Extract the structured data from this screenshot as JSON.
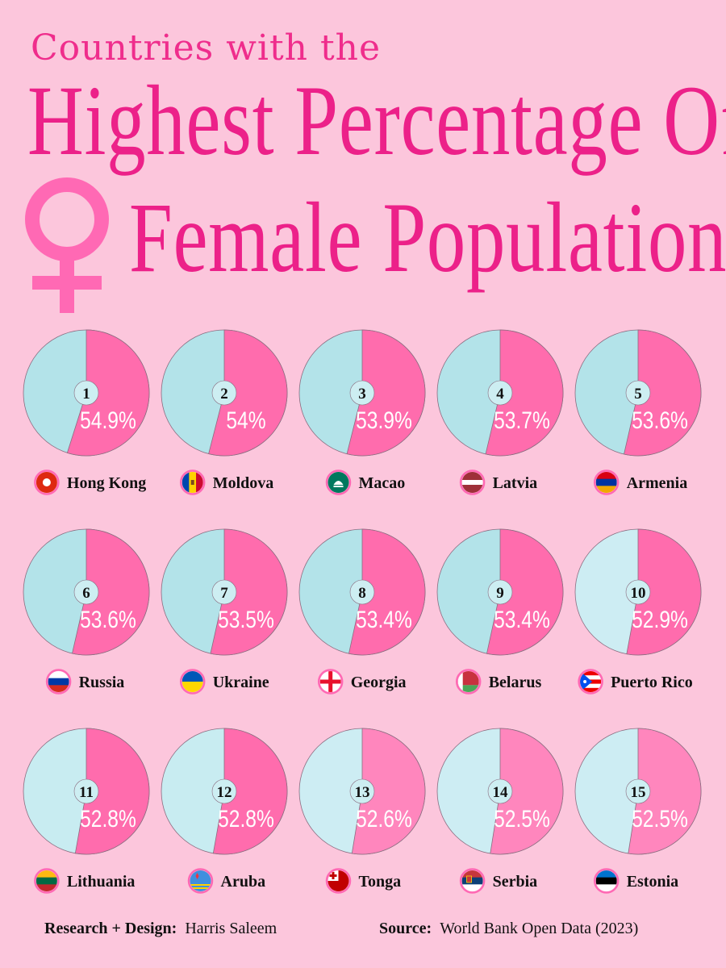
{
  "title": {
    "line1": "Countries with the",
    "line2": "Highest Percentage Of",
    "line3": "Female Population"
  },
  "colors": {
    "background": "#fcc6dc",
    "title": "#ec2189",
    "female_slice": "#ff6cad",
    "other_slices": [
      "#b3e3e9",
      "#b3e3e9",
      "#b3e3e9",
      "#b3e3e9",
      "#b3e3e9",
      "#b3e3e9",
      "#b3e3e9",
      "#b3e3e9",
      "#b3e3e9",
      "#cdedf3",
      "#c8ecf1",
      "#c8ecf1",
      "#cdedf3",
      "#cdedf3",
      "#cdedf3"
    ],
    "female_slices": [
      "#ff6cad",
      "#ff6cad",
      "#ff6cad",
      "#ff6cad",
      "#ff6cad",
      "#ff6cad",
      "#ff6cad",
      "#ff6cad",
      "#ff6cad",
      "#ff6cad",
      "#ff6cad",
      "#ff6cad",
      "#ff86bd",
      "#ff86bd",
      "#ff86bd"
    ]
  },
  "chart_data": {
    "type": "pie",
    "title": "Countries with the Highest Percentage Of Female Population",
    "unit": "%",
    "items": [
      {
        "rank": "1",
        "country": "Hong Kong",
        "value": 54.9,
        "label": "54.9%",
        "flag": "hong-kong-flag-icon"
      },
      {
        "rank": "2",
        "country": "Moldova",
        "value": 54.0,
        "label": "54%",
        "flag": "moldova-flag-icon"
      },
      {
        "rank": "3",
        "country": "Macao",
        "value": 53.9,
        "label": "53.9%",
        "flag": "macao-flag-icon"
      },
      {
        "rank": "4",
        "country": "Latvia",
        "value": 53.7,
        "label": "53.7%",
        "flag": "latvia-flag-icon"
      },
      {
        "rank": "5",
        "country": "Armenia",
        "value": 53.6,
        "label": "53.6%",
        "flag": "armenia-flag-icon"
      },
      {
        "rank": "6",
        "country": "Russia",
        "value": 53.6,
        "label": "53.6%",
        "flag": "russia-flag-icon"
      },
      {
        "rank": "7",
        "country": "Ukraine",
        "value": 53.5,
        "label": "53.5%",
        "flag": "ukraine-flag-icon"
      },
      {
        "rank": "8",
        "country": "Georgia",
        "value": 53.4,
        "label": "53.4%",
        "flag": "georgia-flag-icon"
      },
      {
        "rank": "9",
        "country": "Belarus",
        "value": 53.4,
        "label": "53.4%",
        "flag": "belarus-flag-icon"
      },
      {
        "rank": "10",
        "country": "Puerto Rico",
        "value": 52.9,
        "label": "52.9%",
        "flag": "puerto-rico-flag-icon"
      },
      {
        "rank": "11",
        "country": "Lithuania",
        "value": 52.8,
        "label": "52.8%",
        "flag": "lithuania-flag-icon"
      },
      {
        "rank": "12",
        "country": "Aruba",
        "value": 52.8,
        "label": "52.8%",
        "flag": "aruba-flag-icon"
      },
      {
        "rank": "13",
        "country": "Tonga",
        "value": 52.6,
        "label": "52.6%",
        "flag": "tonga-flag-icon"
      },
      {
        "rank": "14",
        "country": "Serbia",
        "value": 52.5,
        "label": "52.5%",
        "flag": "serbia-flag-icon"
      },
      {
        "rank": "15",
        "country": "Estonia",
        "value": 52.5,
        "label": "52.5%",
        "flag": "estonia-flag-icon"
      }
    ]
  },
  "footer": {
    "credit_label": "Research + Design:",
    "credit_name": "Harris Saleem",
    "source_label": "Source:",
    "source_name": "World Bank Open Data (2023)"
  }
}
